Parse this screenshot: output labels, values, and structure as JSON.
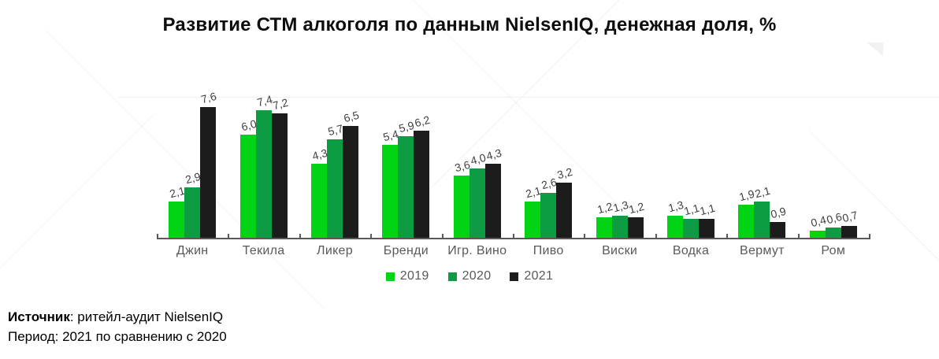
{
  "title": "Развитие СТМ алкоголя по данным NielsenIQ, денежная доля, %",
  "chart_data": {
    "type": "bar",
    "categories": [
      "Джин",
      "Текила",
      "Ликер",
      "Бренди",
      "Игр. Вино",
      "Пиво",
      "Виски",
      "Водка",
      "Вермут",
      "Ром"
    ],
    "series": [
      {
        "name": "2019",
        "color": "#00d414",
        "values": [
          2.1,
          6.0,
          4.3,
          5.4,
          3.6,
          2.1,
          1.2,
          1.3,
          1.9,
          0.4
        ]
      },
      {
        "name": "2020",
        "color": "#0d9b44",
        "values": [
          2.9,
          7.4,
          5.7,
          5.9,
          4.0,
          2.6,
          1.3,
          1.1,
          2.1,
          0.6
        ]
      },
      {
        "name": "2021",
        "color": "#1c1c1c",
        "values": [
          7.6,
          7.2,
          6.5,
          6.2,
          4.3,
          3.2,
          1.2,
          1.1,
          0.9,
          0.7
        ]
      }
    ],
    "ylim": [
      0,
      8.3
    ],
    "value_labels": true,
    "value_label_decimal_separator": ",",
    "legend_position": "bottom",
    "grid": "single faint horizontal line near top",
    "axis_color": "#595959"
  },
  "footer": {
    "source_label": "Источник",
    "source_rest": ": ритейл-аудит NielsenIQ",
    "period_line": "Период: 2021 по сравнению с 2020"
  }
}
